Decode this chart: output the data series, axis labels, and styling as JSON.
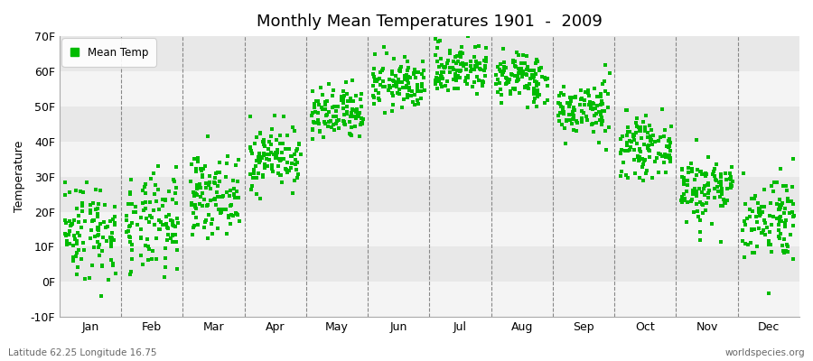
{
  "title": "Monthly Mean Temperatures 1901  -  2009",
  "ylabel": "Temperature",
  "marker_color": "#00BB00",
  "marker_size": 3,
  "marker_style": "s",
  "legend_label": "Mean Temp",
  "band_color_light": "#e8e8e8",
  "band_color_white": "#f4f4f4",
  "ylim": [
    -10,
    70
  ],
  "yticks": [
    -10,
    0,
    10,
    20,
    30,
    40,
    50,
    60,
    70
  ],
  "ytick_labels": [
    "-10F",
    "0F",
    "10F",
    "20F",
    "30F",
    "40F",
    "50F",
    "60F",
    "70F"
  ],
  "months": [
    "Jan",
    "Feb",
    "Mar",
    "Apr",
    "May",
    "Jun",
    "Jul",
    "Aug",
    "Sep",
    "Oct",
    "Nov",
    "Dec"
  ],
  "subtitle_left": "Latitude 62.25 Longitude 16.75",
  "subtitle_right": "worldspecies.org",
  "start_year": 1901,
  "end_year": 2009,
  "monthly_mean_C": [
    -9.5,
    -9.0,
    -4.0,
    2.0,
    8.5,
    13.5,
    16.0,
    14.5,
    9.5,
    3.5,
    -3.0,
    -7.5
  ],
  "monthly_std_C": [
    4.0,
    4.0,
    3.0,
    2.5,
    2.2,
    2.0,
    2.0,
    2.0,
    2.2,
    2.2,
    2.8,
    3.5
  ]
}
